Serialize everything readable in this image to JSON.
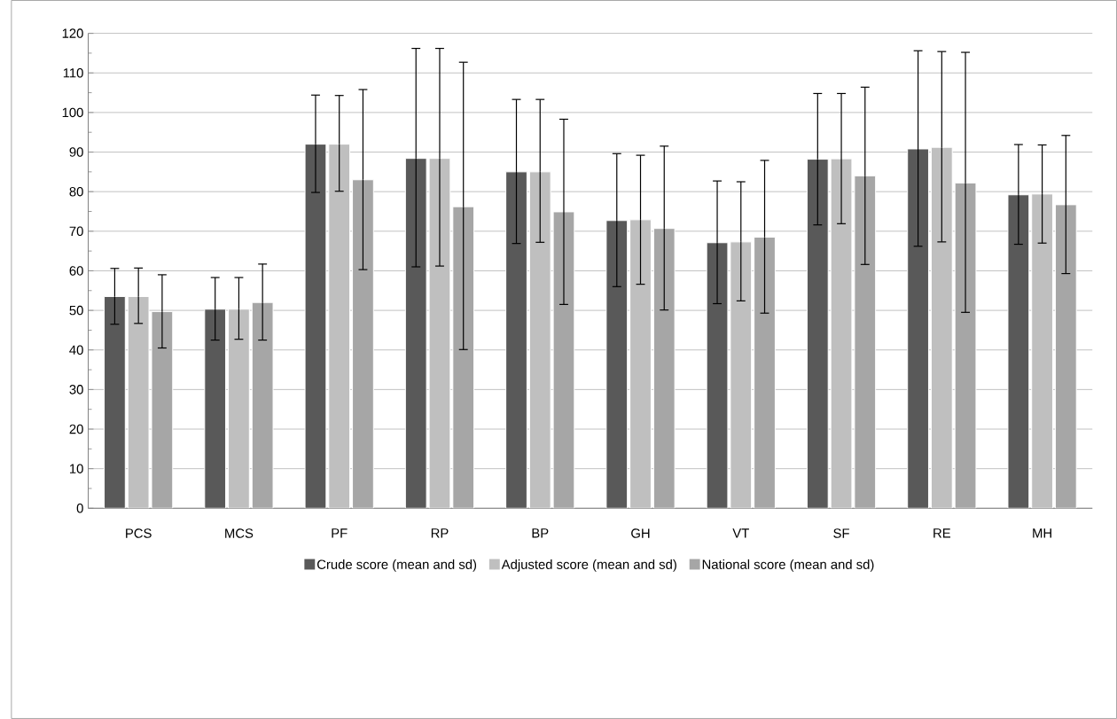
{
  "chart_data": {
    "type": "bar",
    "categories": [
      "PCS",
      "MCS",
      "PF",
      "RP",
      "BP",
      "GH",
      "VT",
      "SF",
      "RE",
      "MH"
    ],
    "series": [
      {
        "name": "Crude score (mean and sd)",
        "color": "#595959",
        "values": [
          53.5,
          50.3,
          92,
          88.4,
          85,
          72.7,
          67.1,
          88.2,
          90.8,
          79.2
        ],
        "errors": [
          [
            46.5,
            60.6
          ],
          [
            42.5,
            58.3
          ],
          [
            79.8,
            104.4
          ],
          [
            61,
            116.2
          ],
          [
            66.9,
            103.3
          ],
          [
            56,
            89.6
          ],
          [
            51.7,
            82.7
          ],
          [
            71.6,
            104.8
          ],
          [
            66.2,
            115.6
          ],
          [
            66.7,
            91.9
          ]
        ]
      },
      {
        "name": "Adjusted score (mean and sd)",
        "color": "#bfbfbf",
        "values": [
          53.5,
          50.3,
          92,
          88.4,
          85,
          72.9,
          67.3,
          88.3,
          91.2,
          79.4
        ],
        "errors": [
          [
            46.7,
            60.7
          ],
          [
            42.7,
            58.3
          ],
          [
            80.1,
            104.3
          ],
          [
            61.2,
            116.2
          ],
          [
            67.2,
            103.3
          ],
          [
            56.6,
            89.2
          ],
          [
            52.4,
            82.5
          ],
          [
            71.9,
            104.8
          ],
          [
            67.3,
            115.4
          ],
          [
            67,
            91.8
          ]
        ]
      },
      {
        "name": "National score (mean and sd)",
        "color": "#a6a6a6",
        "values": [
          49.7,
          52,
          83,
          76.2,
          74.9,
          70.7,
          68.5,
          84,
          82.2,
          76.7
        ],
        "errors": [
          [
            40.5,
            59
          ],
          [
            42.5,
            61.7
          ],
          [
            60.3,
            105.8
          ],
          [
            40.1,
            112.7
          ],
          [
            51.5,
            98.3
          ],
          [
            50.1,
            91.5
          ],
          [
            49.3,
            87.9
          ],
          [
            61.6,
            106.4
          ],
          [
            49.5,
            115.2
          ],
          [
            59.3,
            94.2
          ]
        ]
      }
    ],
    "ylim": [
      0,
      120
    ],
    "yticks": [
      0,
      10,
      20,
      30,
      40,
      50,
      60,
      70,
      80,
      90,
      100,
      110,
      120
    ],
    "grid": "y",
    "legend": "bottom"
  }
}
